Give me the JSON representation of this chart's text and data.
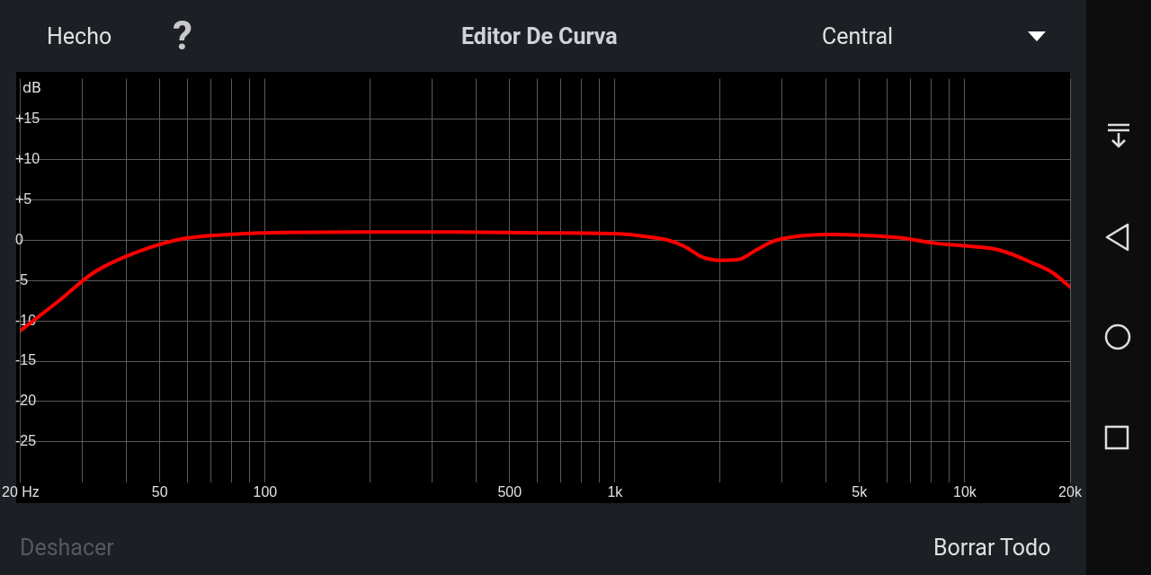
{
  "chart_data": {
    "type": "line",
    "title": "Editor De Curva",
    "ylabel": "dB",
    "annotations": [
      "Hecho",
      "?",
      "Central",
      "Deshacer",
      "Borrar Todo"
    ],
    "log": "x",
    "grid": true,
    "legend": false,
    "marker": "none",
    "line_style": "solid",
    "xlim": [
      20,
      20000
    ],
    "ylim": [
      -30,
      20
    ],
    "xticks": [
      {
        "value": 20,
        "label": "20 Hz"
      },
      {
        "value": 30,
        "label": null
      },
      {
        "value": 40,
        "label": null
      },
      50,
      {
        "value": 60,
        "label": null
      },
      {
        "value": 70,
        "label": null
      },
      {
        "value": 80,
        "label": null
      },
      {
        "value": 90,
        "label": null
      },
      100,
      {
        "value": 200,
        "label": null
      },
      {
        "value": 300,
        "label": null
      },
      {
        "value": 400,
        "label": null
      },
      500,
      {
        "value": 600,
        "label": null
      },
      {
        "value": 700,
        "label": null
      },
      {
        "value": 800,
        "label": null
      },
      {
        "value": 900,
        "label": null
      },
      {
        "value": 1000,
        "label": "1k"
      },
      {
        "value": 2000,
        "label": null
      },
      {
        "value": 3000,
        "label": null
      },
      {
        "value": 4000,
        "label": null
      },
      {
        "value": 5000,
        "label": "5k"
      },
      {
        "value": 6000,
        "label": null
      },
      {
        "value": 7000,
        "label": null
      },
      {
        "value": 8000,
        "label": null
      },
      {
        "value": 9000,
        "label": null
      },
      {
        "value": 10000,
        "label": "10k"
      },
      {
        "value": 20000,
        "label": "20k"
      }
    ],
    "yticks": [
      {
        "value": -25,
        "label": "-25"
      },
      {
        "value": -20,
        "label": "-20"
      },
      {
        "value": -15,
        "label": "-15"
      },
      {
        "value": -10,
        "label": "-10"
      },
      {
        "value": -5,
        "label": "-5"
      },
      0,
      {
        "value": 5,
        "label": "+5"
      },
      {
        "value": 10,
        "label": "+10"
      },
      {
        "value": 15,
        "label": "+15"
      }
    ],
    "series": [
      {
        "color": "#ff0000",
        "x": [
          20,
          25.6,
          32.4,
          43.5,
          58.5,
          78.6,
          100,
          190,
          343,
          618,
          1000,
          1250,
          1420,
          1585,
          1780,
          2000,
          2255,
          2540,
          2850,
          3215,
          4070,
          5160,
          6520,
          8260,
          10000,
          12470,
          15770,
          17780,
          20000
        ],
        "values": [
          -11.2,
          -7.6,
          -4,
          -1.4,
          0.2,
          0.7,
          0.9,
          1,
          1,
          0.9,
          0.8,
          0.4,
          0,
          -0.8,
          -2.1,
          -2.5,
          -2.4,
          -1.2,
          -0.1,
          0.4,
          0.7,
          0.6,
          0.3,
          -0.4,
          -0.7,
          -1.2,
          -2.9,
          -4,
          -5.8
        ]
      }
    ]
  }
}
